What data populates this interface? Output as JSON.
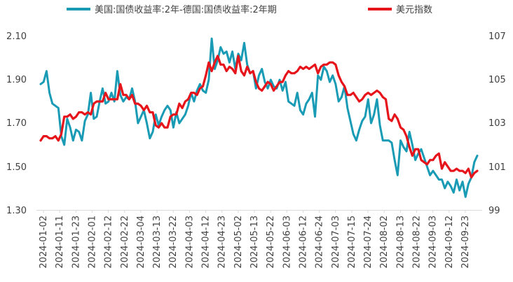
{
  "chart_data": {
    "type": "line",
    "title": "",
    "xlabel": "",
    "ylabel_left": "",
    "ylabel_right": "",
    "legend_position": "top",
    "grid": false,
    "left_axis": {
      "ylim": [
        1.3,
        2.1
      ],
      "ticks": [
        "1.30",
        "1.50",
        "1.70",
        "1.90",
        "2.10"
      ]
    },
    "right_axis": {
      "ylim": [
        99,
        107
      ],
      "ticks": [
        "99",
        "101",
        "103",
        "105",
        "107"
      ]
    },
    "x_tick_labels": [
      "2024-01-02",
      "2024-01-11",
      "2024-01-23",
      "2024-02-01",
      "2024-02-12",
      "2024-02-22",
      "2024-03-04",
      "2024-03-13",
      "2024-03-22",
      "2024-04-03",
      "2024-04-12",
      "2024-04-23",
      "2024-05-02",
      "2024-05-13",
      "2024-05-22",
      "2024-06-03",
      "2024-06-12",
      "2024-06-24",
      "2024-07-03",
      "2024-07-15",
      "2024-07-24",
      "2024-08-02",
      "2024-08-13",
      "2024-08-22",
      "2024-09-03",
      "2024-09-12",
      "2024-09-23"
    ],
    "series": [
      {
        "name": "美国:国债收益率:2年-德国:国债收益率:2年期",
        "axis": "left",
        "color": "#1a9bb5",
        "values": [
          1.88,
          1.89,
          1.94,
          1.84,
          1.79,
          1.78,
          1.77,
          1.64,
          1.6,
          1.72,
          1.68,
          1.62,
          1.67,
          1.66,
          1.62,
          1.71,
          1.74,
          1.84,
          1.72,
          1.73,
          1.8,
          1.86,
          1.79,
          1.8,
          1.84,
          1.8,
          1.94,
          1.83,
          1.8,
          1.82,
          1.81,
          1.86,
          1.8,
          1.7,
          1.73,
          1.76,
          1.7,
          1.63,
          1.66,
          1.74,
          1.69,
          1.73,
          1.76,
          1.78,
          1.76,
          1.68,
          1.75,
          1.7,
          1.72,
          1.74,
          1.78,
          1.84,
          1.8,
          1.85,
          1.88,
          1.85,
          1.84,
          1.9,
          2.09,
          1.95,
          1.99,
          2.05,
          2.02,
          2.03,
          1.98,
          2.03,
          1.95,
          2.02,
          1.99,
          2.07,
          1.97,
          1.93,
          1.94,
          1.86,
          1.92,
          1.95,
          1.89,
          1.86,
          1.9,
          1.87,
          1.86,
          1.9,
          1.85,
          1.89,
          1.8,
          1.79,
          1.78,
          1.84,
          1.76,
          1.74,
          1.79,
          1.81,
          1.84,
          1.73,
          1.92,
          1.9,
          1.96,
          1.94,
          1.89,
          1.92,
          1.88,
          1.8,
          1.82,
          1.87,
          1.77,
          1.71,
          1.65,
          1.62,
          1.67,
          1.71,
          1.73,
          1.81,
          1.7,
          1.74,
          1.81,
          1.69,
          1.62,
          1.62,
          1.62,
          1.61,
          1.53,
          1.46,
          1.62,
          1.59,
          1.57,
          1.66,
          1.6,
          1.53,
          1.56,
          1.58,
          1.54,
          1.5,
          1.46,
          1.48,
          1.46,
          1.44,
          1.44,
          1.4,
          1.43,
          1.41,
          1.38,
          1.44,
          1.39,
          1.43,
          1.36,
          1.42,
          1.45,
          1.52,
          1.55
        ]
      },
      {
        "name": "美元指数",
        "axis": "right",
        "color": "#e6151b",
        "values": [
          102.2,
          102.4,
          102.4,
          102.3,
          102.3,
          102.4,
          102.2,
          102.5,
          103.3,
          103.3,
          103.4,
          103.2,
          103.3,
          103.5,
          103.5,
          103.4,
          103.5,
          103.4,
          103.9,
          104.0,
          104.0,
          104.0,
          104.4,
          104.1,
          104.1,
          104.1,
          104.1,
          104.8,
          104.3,
          104.3,
          104.1,
          104.3,
          103.9,
          103.9,
          103.8,
          103.6,
          103.8,
          103.5,
          103.5,
          102.9,
          102.8,
          103.0,
          102.8,
          102.8,
          103.3,
          103.4,
          103.4,
          103.9,
          103.7,
          104.0,
          104.1,
          104.4,
          104.4,
          104.3,
          104.6,
          104.7,
          105.2,
          105.8,
          105.4,
          105.8,
          106.1,
          105.7,
          105.7,
          105.4,
          105.6,
          105.5,
          105.3,
          106.1,
          105.4,
          105.2,
          105.6,
          105.3,
          105.4,
          104.9,
          104.6,
          104.5,
          104.7,
          104.9,
          104.8,
          104.5,
          104.7,
          104.9,
          104.9,
          105.2,
          105.4,
          105.3,
          105.3,
          105.4,
          105.6,
          105.5,
          105.6,
          105.5,
          105.6,
          105.7,
          105.3,
          105.6,
          105.7,
          105.7,
          105.8,
          105.8,
          105.7,
          105.2,
          104.9,
          104.7,
          104.3,
          104.3,
          104.4,
          104.2,
          104.0,
          104.1,
          104.3,
          104.4,
          104.3,
          104.4,
          104.5,
          104.4,
          104.2,
          104.1,
          103.2,
          103.1,
          103.4,
          103.2,
          102.8,
          102.7,
          102.4,
          101.9,
          101.5,
          101.8,
          101.8,
          101.3,
          101.2,
          101.1,
          101.3,
          101.3,
          101.5,
          101.6,
          100.9,
          101.2,
          101.0,
          100.8,
          100.8,
          100.9,
          100.8,
          100.8,
          100.7,
          100.9,
          100.5,
          100.7,
          100.8
        ]
      }
    ]
  }
}
